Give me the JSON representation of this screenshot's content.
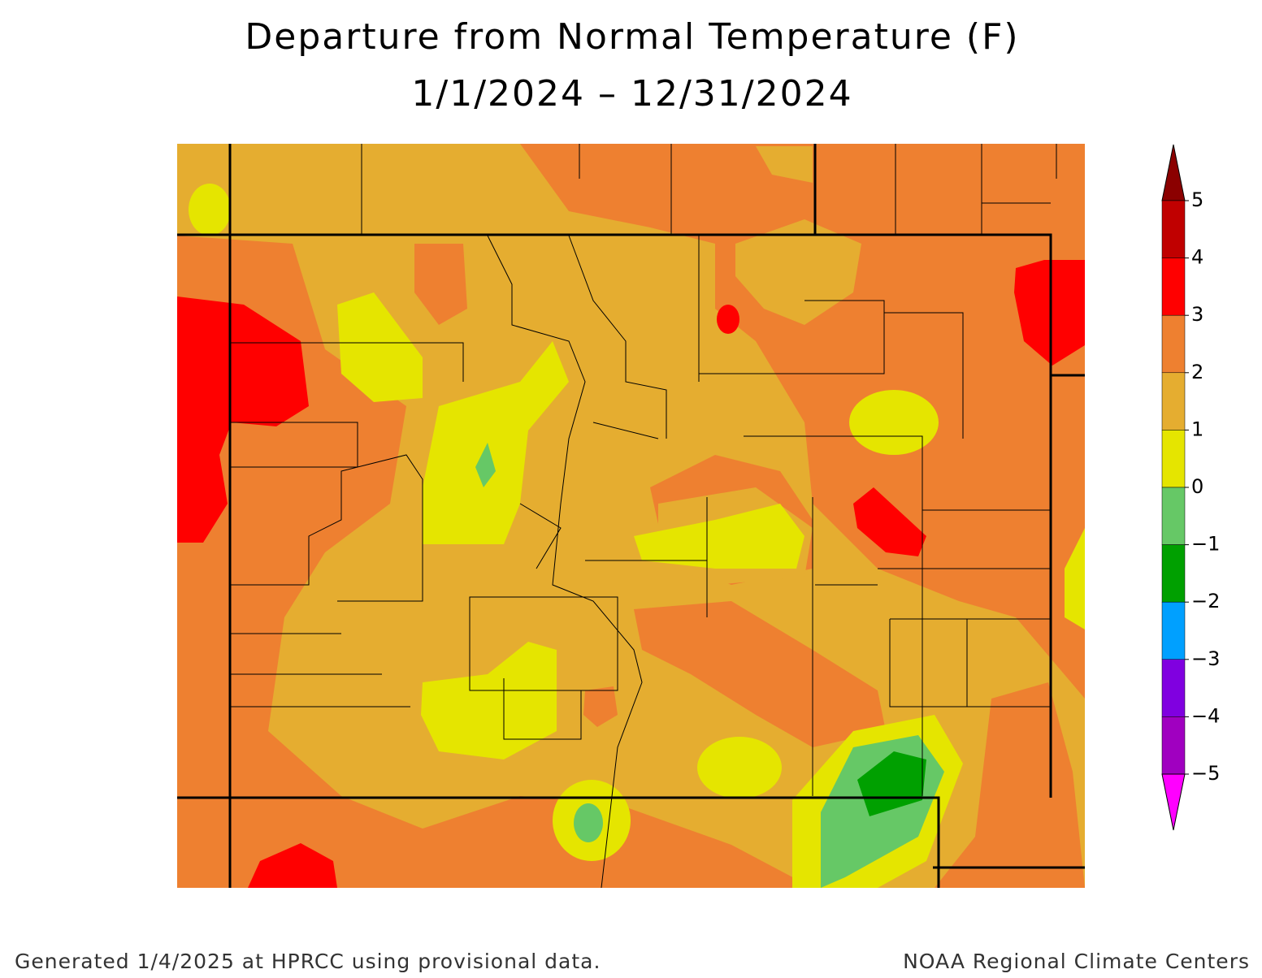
{
  "title": "Departure from Normal Temperature (F)",
  "subtitle": "1/1/2024 – 12/31/2024",
  "legend": {
    "ticks": [
      5,
      4,
      3,
      2,
      1,
      0,
      {
        "value": -1,
        "label": "−1"
      },
      {
        "value": -2,
        "label": "−2"
      },
      {
        "value": -3,
        "label": "−3"
      },
      {
        "value": -4,
        "label": "−4"
      },
      {
        "value": -5,
        "label": "−5"
      }
    ],
    "colors": [
      "#8b0000",
      "#c00000",
      "#ff0000",
      "#ee8030",
      "#e5ad30",
      "#e5e500",
      "#66c866",
      "#00a000",
      "#00a0ff",
      "#8000e0",
      "#a000c0",
      "#ff00ff"
    ]
  },
  "footer": {
    "left": "Generated 1/4/2025 at HPRCC using provisional data.",
    "right": "NOAA Regional Climate Centers"
  }
}
